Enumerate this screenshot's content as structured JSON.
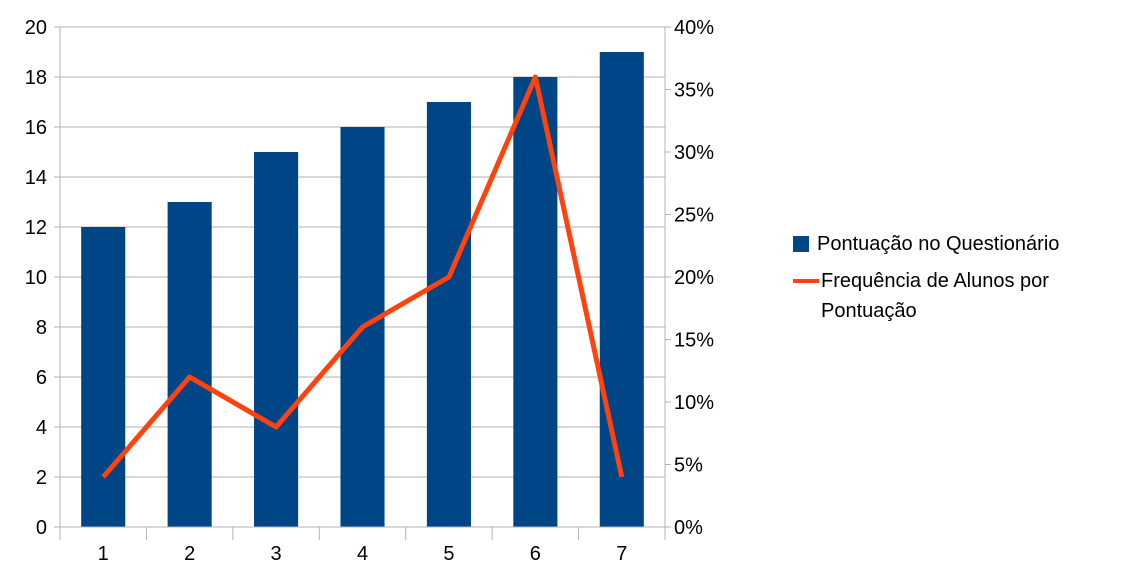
{
  "chart_data": {
    "type": "bar",
    "categories": [
      "1",
      "2",
      "3",
      "4",
      "5",
      "6",
      "7"
    ],
    "series": [
      {
        "name": "Pontuação no Questionário",
        "type": "bar",
        "axis": "left",
        "color": "#004586",
        "values": [
          12,
          13,
          15,
          16,
          17,
          18,
          19
        ]
      },
      {
        "name": "Frequência de Alunos por Pontuação",
        "type": "line",
        "axis": "right",
        "color": "#ff420e",
        "values": [
          0.04,
          0.12,
          0.08,
          0.16,
          0.2,
          0.36,
          0.04
        ]
      }
    ],
    "y_left": {
      "min": 0,
      "max": 20,
      "step": 2,
      "ticks": [
        "0",
        "2",
        "4",
        "6",
        "8",
        "10",
        "12",
        "14",
        "16",
        "18",
        "20"
      ]
    },
    "y_right": {
      "min": 0,
      "max": 0.4,
      "ticks": [
        "0%",
        "5%",
        "10%",
        "15%",
        "20%",
        "25%",
        "30%",
        "35%",
        "40%"
      ]
    },
    "grid": true,
    "legend_position": "right",
    "gridline_color": "#b3b3b3"
  }
}
